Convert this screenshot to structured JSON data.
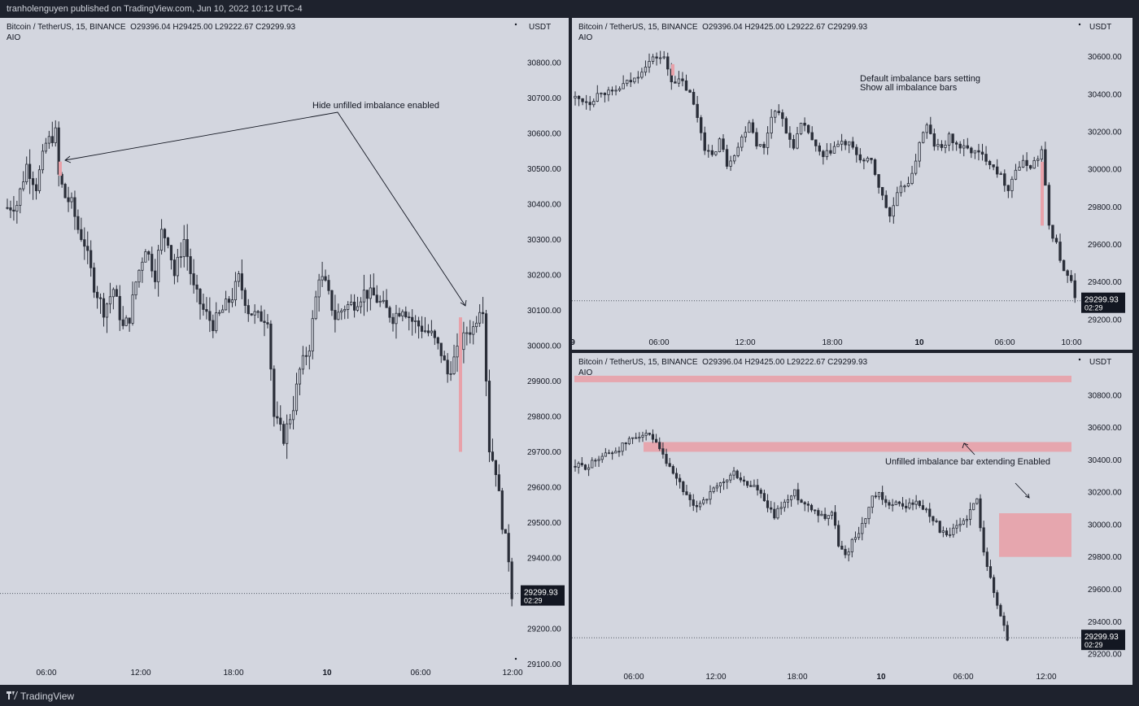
{
  "header": {
    "published": "tranholenguyen published on TradingView.com, Jun 10, 2022 10:12 UTC-4"
  },
  "footer": {
    "brand": "TradingView",
    "logo_icon": "tradingview-logo-icon"
  },
  "colors": {
    "background": "#1e222d",
    "panel_bg": "#d3d6df",
    "candle": "#2a2e39",
    "imbalance": "#e8a1a9",
    "text": "#131722"
  },
  "panels": [
    {
      "symbol": "Bitcoin / TetherUS, 15, BINANCE",
      "ohlc": "O29396.04  H29425.00  L29222.67  C29299.93",
      "indicator": "AIO",
      "currency": "USDT",
      "price_label": "29299.93",
      "countdown": "02:29"
    },
    {
      "symbol": "Bitcoin / TetherUS, 15, BINANCE",
      "ohlc": "O29396.04  H29425.00  L29222.67  C29299.93",
      "indicator": "AIO",
      "currency": "USDT",
      "price_label": "29299.93",
      "countdown": "02:29"
    },
    {
      "symbol": "Bitcoin / TetherUS, 15, BINANCE",
      "ohlc": "O29396.04  H29425.00  L29222.67  C29299.93",
      "indicator": "AIO",
      "currency": "USDT",
      "price_label": "29299.93",
      "countdown": "02:29"
    }
  ],
  "chart_data": [
    {
      "type": "candlestick",
      "ylim": [
        29060,
        30880
      ],
      "yticks": [
        29100,
        29200,
        29300,
        29400,
        29500,
        29600,
        29700,
        29800,
        29900,
        30000,
        30100,
        30200,
        30300,
        30400,
        30500,
        30600,
        30700,
        30800
      ],
      "xticks": [
        "06:00",
        "12:00",
        "18:00",
        "10",
        "06:00",
        "12:00"
      ],
      "last_price": 29299.93,
      "imbalance_bars": [
        {
          "at": "06:30",
          "from": 30480,
          "to": 30520
        },
        {
          "at": "09:15",
          "from": 29700,
          "to": 30080
        }
      ],
      "annotations": [
        {
          "text": "Hide unfilled imbalance enabled"
        }
      ],
      "close_path": [
        [
          0,
          30390
        ],
        [
          3,
          30400
        ],
        [
          6,
          30510
        ],
        [
          9,
          30450
        ],
        [
          12,
          30570
        ],
        [
          15,
          30600
        ],
        [
          16,
          30480
        ],
        [
          18,
          30420
        ],
        [
          20,
          30400
        ],
        [
          22,
          30330
        ],
        [
          24,
          30290
        ],
        [
          27,
          30170
        ],
        [
          30,
          30100
        ],
        [
          33,
          30160
        ],
        [
          36,
          30050
        ],
        [
          38,
          30080
        ],
        [
          40,
          30180
        ],
        [
          43,
          30280
        ],
        [
          46,
          30200
        ],
        [
          48,
          30320
        ],
        [
          50,
          30300
        ],
        [
          52,
          30200
        ],
        [
          55,
          30300
        ],
        [
          58,
          30160
        ],
        [
          61,
          30100
        ],
        [
          64,
          30060
        ],
        [
          67,
          30100
        ],
        [
          70,
          30140
        ],
        [
          72,
          30190
        ],
        [
          75,
          30100
        ],
        [
          78,
          30080
        ],
        [
          81,
          30080
        ],
        [
          83,
          29800
        ],
        [
          86,
          29740
        ],
        [
          89,
          29830
        ],
        [
          91,
          29930
        ],
        [
          94,
          30000
        ],
        [
          97,
          30200
        ],
        [
          99,
          30170
        ],
        [
          102,
          30080
        ],
        [
          105,
          30110
        ],
        [
          108,
          30120
        ],
        [
          111,
          30150
        ],
        [
          114,
          30140
        ],
        [
          117,
          30110
        ],
        [
          120,
          30080
        ],
        [
          123,
          30110
        ],
        [
          126,
          30070
        ],
        [
          129,
          30050
        ],
        [
          132,
          30030
        ],
        [
          135,
          29980
        ],
        [
          137,
          29920
        ],
        [
          139,
          29960
        ],
        [
          141,
          30000
        ],
        [
          143,
          30040
        ],
        [
          145,
          30050
        ],
        [
          147,
          30110
        ],
        [
          148,
          30110
        ],
        [
          150,
          29710
        ],
        [
          152,
          29650
        ],
        [
          154,
          29500
        ],
        [
          156,
          29400
        ],
        [
          157,
          29300
        ]
      ]
    },
    {
      "type": "candlestick",
      "ylim": [
        29160,
        30720
      ],
      "yticks": [
        29200,
        29400,
        29600,
        29800,
        30000,
        30200,
        30400,
        30600
      ],
      "xticks": [
        "9",
        "06:00",
        "12:00",
        "18:00",
        "10",
        "06:00",
        "10:00"
      ],
      "last_price": 29299.93,
      "imbalance_bars": [
        {
          "at": "06:45",
          "from": 30500,
          "to": 30560
        },
        {
          "at": "09:15",
          "from": 29700,
          "to": 30040
        }
      ],
      "annotations": [
        {
          "text": "Default imbalance bars setting"
        },
        {
          "text": "Show all imbalance bars"
        }
      ],
      "close_path": [
        [
          0,
          30380
        ],
        [
          4,
          30360
        ],
        [
          7,
          30420
        ],
        [
          10,
          30400
        ],
        [
          13,
          30450
        ],
        [
          16,
          30480
        ],
        [
          19,
          30560
        ],
        [
          22,
          30600
        ],
        [
          24,
          30590
        ],
        [
          26,
          30480
        ],
        [
          29,
          30460
        ],
        [
          31,
          30400
        ],
        [
          33,
          30280
        ],
        [
          35,
          30120
        ],
        [
          37,
          30060
        ],
        [
          39,
          30160
        ],
        [
          41,
          30030
        ],
        [
          44,
          30120
        ],
        [
          47,
          30260
        ],
        [
          49,
          30140
        ],
        [
          51,
          30110
        ],
        [
          53,
          30290
        ],
        [
          55,
          30320
        ],
        [
          57,
          30190
        ],
        [
          59,
          30130
        ],
        [
          61,
          30230
        ],
        [
          63,
          30200
        ],
        [
          65,
          30110
        ],
        [
          67,
          30060
        ],
        [
          70,
          30120
        ],
        [
          72,
          30140
        ],
        [
          74,
          30130
        ],
        [
          76,
          30080
        ],
        [
          78,
          30040
        ],
        [
          80,
          30040
        ],
        [
          83,
          29850
        ],
        [
          85,
          29750
        ],
        [
          87,
          29860
        ],
        [
          89,
          29920
        ],
        [
          91,
          29960
        ],
        [
          93,
          30150
        ],
        [
          95,
          30230
        ],
        [
          97,
          30130
        ],
        [
          99,
          30110
        ],
        [
          101,
          30170
        ],
        [
          103,
          30130
        ],
        [
          105,
          30110
        ],
        [
          107,
          30100
        ],
        [
          109,
          30080
        ],
        [
          111,
          30060
        ],
        [
          113,
          30020
        ],
        [
          115,
          29960
        ],
        [
          117,
          29900
        ],
        [
          119,
          30000
        ],
        [
          121,
          30030
        ],
        [
          123,
          30020
        ],
        [
          125,
          30060
        ],
        [
          126,
          30100
        ],
        [
          128,
          29700
        ],
        [
          130,
          29600
        ],
        [
          132,
          29450
        ],
        [
          134,
          29400
        ],
        [
          135,
          29300
        ]
      ]
    },
    {
      "type": "candlestick",
      "ylim": [
        29150,
        30960
      ],
      "yticks": [
        29200,
        29400,
        29600,
        29800,
        30000,
        30200,
        30400,
        30600,
        30800
      ],
      "xticks": [
        "06:00",
        "12:00",
        "18:00",
        "10",
        "06:00",
        "12:00"
      ],
      "last_price": 29299.93,
      "imbalance_bars": [
        {
          "from": 30880,
          "to": 30920
        },
        {
          "from": 30450,
          "to": 30510
        },
        {
          "from": 29800,
          "to": 30070
        }
      ],
      "annotations": [
        {
          "text": "Unfilled imbalance bar extending Enabled"
        }
      ],
      "close_path": [
        [
          0,
          30360
        ],
        [
          4,
          30360
        ],
        [
          7,
          30420
        ],
        [
          10,
          30440
        ],
        [
          13,
          30470
        ],
        [
          16,
          30520
        ],
        [
          19,
          30560
        ],
        [
          22,
          30540
        ],
        [
          24,
          30490
        ],
        [
          26,
          30420
        ],
        [
          29,
          30300
        ],
        [
          31,
          30260
        ],
        [
          33,
          30170
        ],
        [
          35,
          30100
        ],
        [
          37,
          30140
        ],
        [
          39,
          30170
        ],
        [
          41,
          30210
        ],
        [
          44,
          30260
        ],
        [
          47,
          30320
        ],
        [
          49,
          30280
        ],
        [
          51,
          30240
        ],
        [
          53,
          30240
        ],
        [
          55,
          30180
        ],
        [
          57,
          30100
        ],
        [
          59,
          30050
        ],
        [
          61,
          30120
        ],
        [
          63,
          30150
        ],
        [
          65,
          30200
        ],
        [
          67,
          30140
        ],
        [
          70,
          30110
        ],
        [
          72,
          30070
        ],
        [
          74,
          30050
        ],
        [
          76,
          30080
        ],
        [
          78,
          29880
        ],
        [
          80,
          29800
        ],
        [
          82,
          29900
        ],
        [
          84,
          29960
        ],
        [
          86,
          30040
        ],
        [
          88,
          30160
        ],
        [
          90,
          30180
        ],
        [
          92,
          30120
        ],
        [
          94,
          30140
        ],
        [
          96,
          30120
        ],
        [
          98,
          30110
        ],
        [
          100,
          30140
        ],
        [
          102,
          30120
        ],
        [
          104,
          30090
        ],
        [
          106,
          30040
        ],
        [
          108,
          29970
        ],
        [
          110,
          29920
        ],
        [
          112,
          29960
        ],
        [
          114,
          30000
        ],
        [
          116,
          30050
        ],
        [
          118,
          30120
        ],
        [
          119,
          30150
        ],
        [
          121,
          29850
        ],
        [
          123,
          29660
        ],
        [
          125,
          29500
        ],
        [
          127,
          29380
        ],
        [
          128,
          29300
        ]
      ]
    }
  ]
}
